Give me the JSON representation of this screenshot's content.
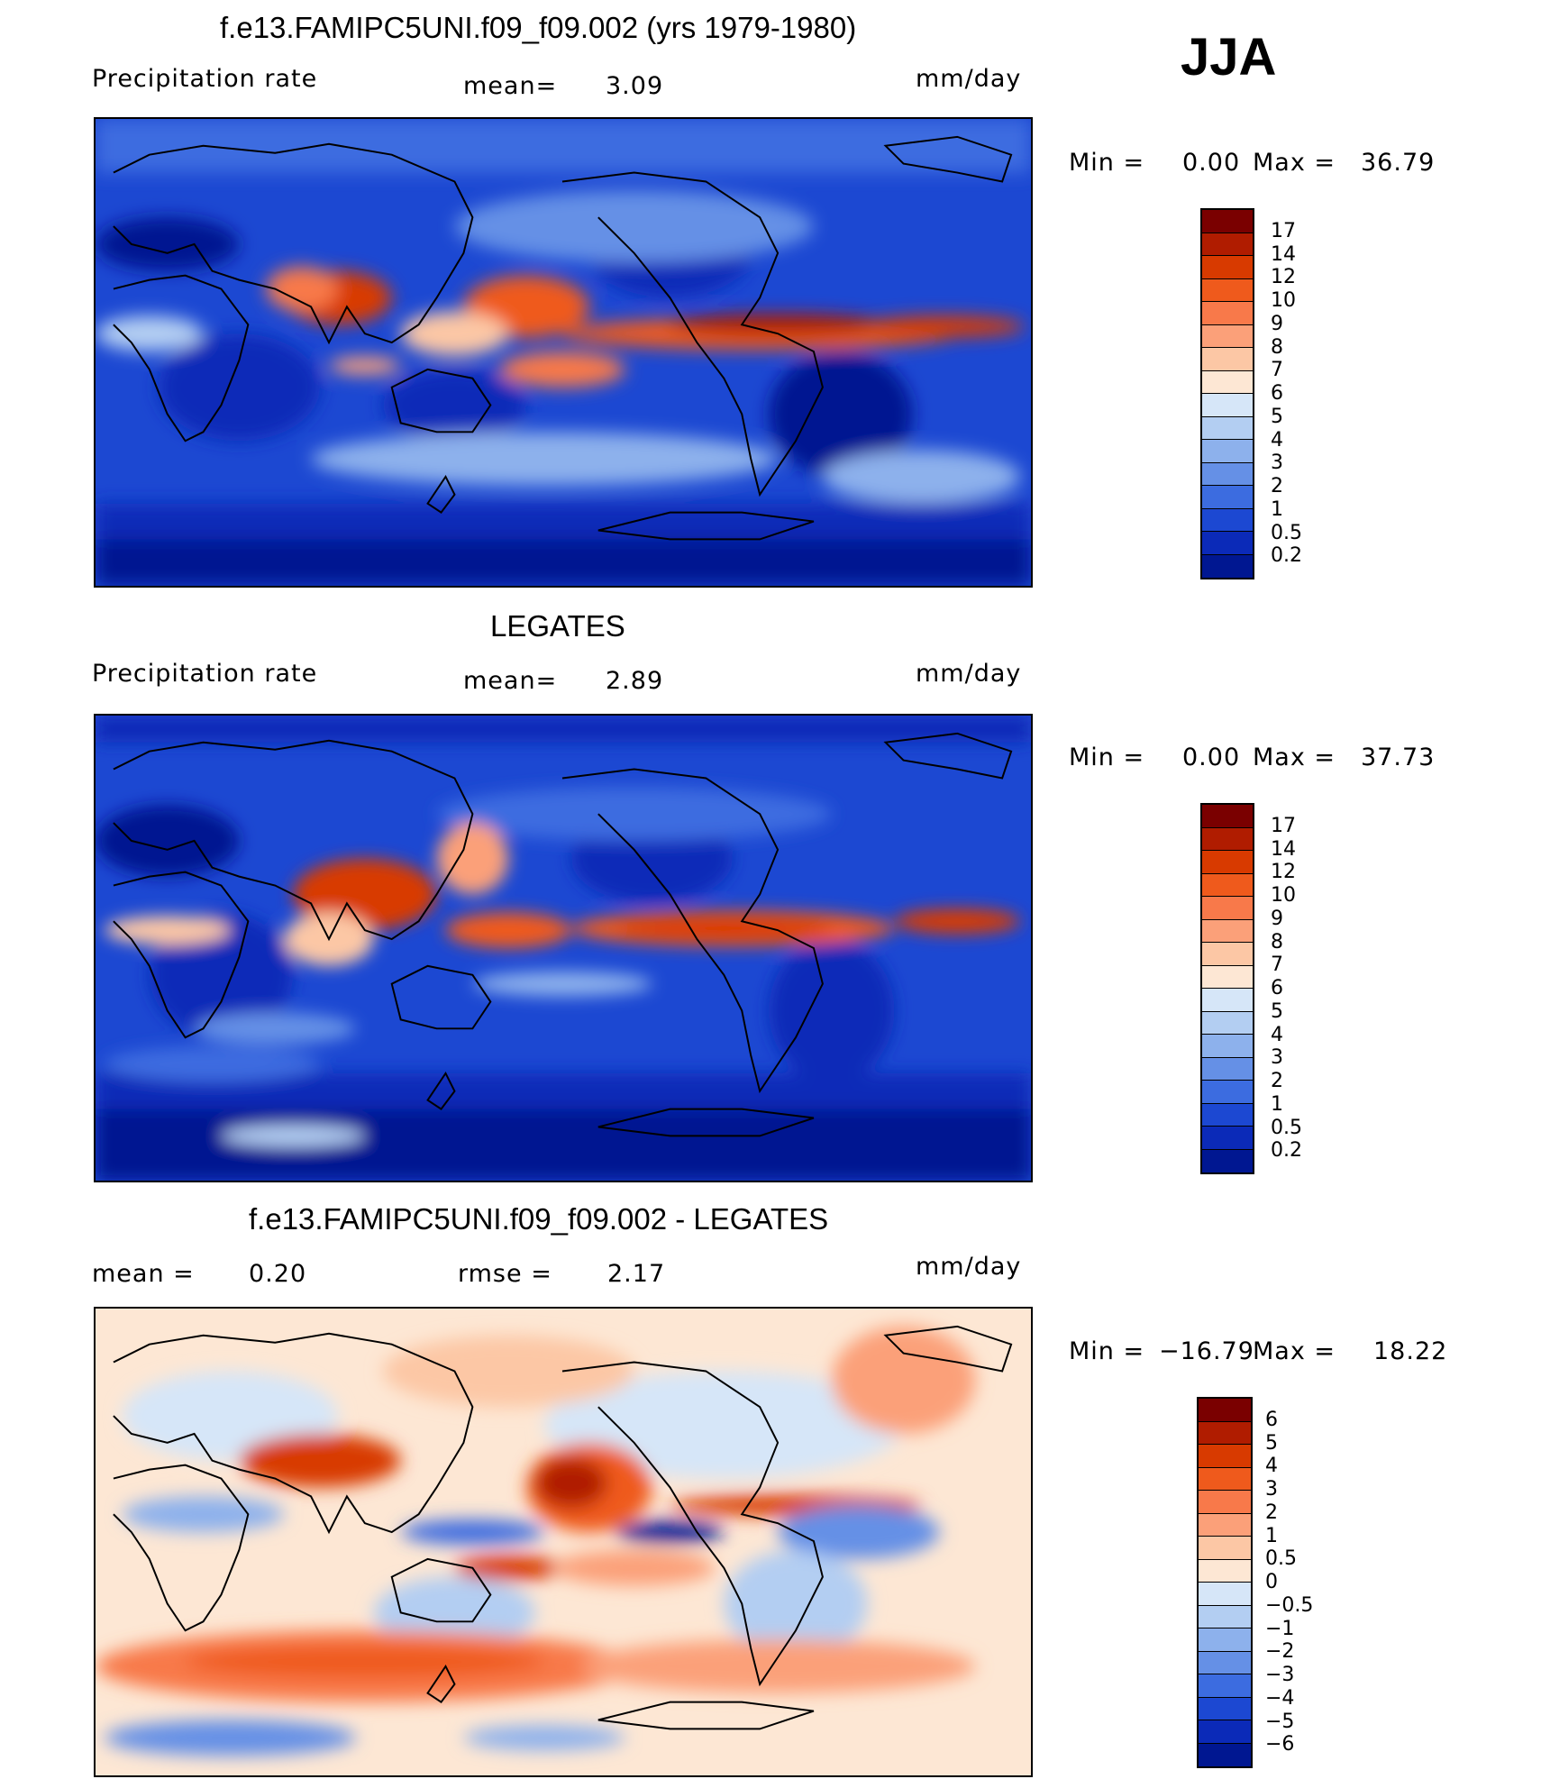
{
  "season": "JJA",
  "panels": [
    {
      "id": "model",
      "title": "f.e13.FAMIPC5UNI.f09_f09.002 (yrs 1979-1980)",
      "left_label": "Precipitation  rate",
      "stat1_label": "mean=",
      "stat1_value": "3.09",
      "stat2_label": "",
      "stat2_value": "",
      "units": "mm/day",
      "min_label": "Min  =",
      "min_value": "0.00",
      "max_label": "Max  =",
      "max_value": "36.79",
      "levels": [
        "17",
        "14",
        "12",
        "10",
        "9",
        "8",
        "7",
        "6",
        "5",
        "4",
        "3",
        "2",
        "1",
        "0.5",
        "0.2"
      ],
      "colors": [
        "#7a0000",
        "#b01c00",
        "#d83a00",
        "#ef5a1c",
        "#f8794a",
        "#fba079",
        "#fcc7a5",
        "#fde7d4",
        "#d6e6f8",
        "#b3cef2",
        "#8db1ec",
        "#6590e6",
        "#3c6ce0",
        "#1c48d2",
        "#0b2ab8",
        "#001791"
      ]
    },
    {
      "id": "obs",
      "title": "LEGATES",
      "left_label": "Precipitation  rate",
      "stat1_label": "mean=",
      "stat1_value": "2.89",
      "stat2_label": "",
      "stat2_value": "",
      "units": "mm/day",
      "min_label": "Min  =",
      "min_value": "0.00",
      "max_label": "Max  =",
      "max_value": "37.73",
      "levels": [
        "17",
        "14",
        "12",
        "10",
        "9",
        "8",
        "7",
        "6",
        "5",
        "4",
        "3",
        "2",
        "1",
        "0.5",
        "0.2"
      ],
      "colors": [
        "#7a0000",
        "#b01c00",
        "#d83a00",
        "#ef5a1c",
        "#f8794a",
        "#fba079",
        "#fcc7a5",
        "#fde7d4",
        "#d6e6f8",
        "#b3cef2",
        "#8db1ec",
        "#6590e6",
        "#3c6ce0",
        "#1c48d2",
        "#0b2ab8",
        "#001791"
      ]
    },
    {
      "id": "diff",
      "title": "f.e13.FAMIPC5UNI.f09_f09.002 - LEGATES",
      "left_label": "mean  =",
      "stat1_label": "0.20",
      "stat1_value": "",
      "stat2_label": "rmse  =",
      "stat2_value": "2.17",
      "units": "mm/day",
      "min_label": "Min  =",
      "min_value": "−16.79",
      "max_label": "Max  =",
      "max_value": "18.22",
      "levels": [
        "6",
        "5",
        "4",
        "3",
        "2",
        "1",
        "0.5",
        "0",
        "−0.5",
        "−1",
        "−2",
        "−3",
        "−4",
        "−5",
        "−6"
      ],
      "colors": [
        "#7a0000",
        "#b01c00",
        "#d83a00",
        "#ef5a1c",
        "#f8794a",
        "#fba079",
        "#fcc7a5",
        "#fde7d4",
        "#d6e6f8",
        "#b3cef2",
        "#8db1ec",
        "#6590e6",
        "#3c6ce0",
        "#1c48d2",
        "#0b2ab8",
        "#001791"
      ]
    }
  ]
}
